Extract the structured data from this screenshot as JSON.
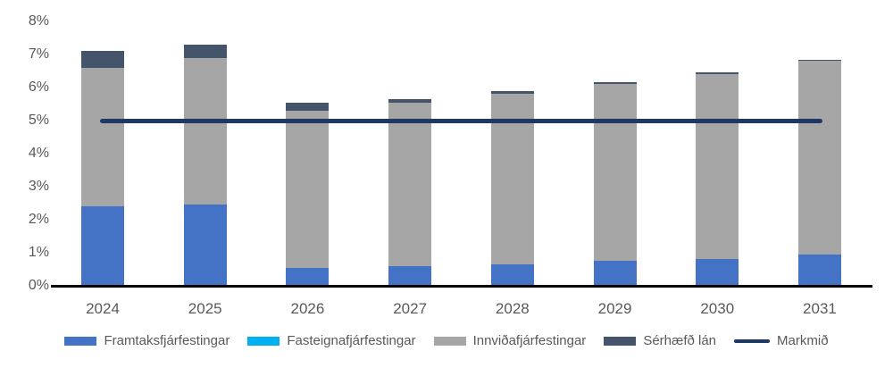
{
  "chart_data": {
    "type": "bar",
    "stacked": true,
    "title": "",
    "xlabel": "",
    "ylabel": "",
    "ylim": [
      0,
      8
    ],
    "y_tick_labels": [
      "0%",
      "1%",
      "2%",
      "3%",
      "4%",
      "5%",
      "6%",
      "7%",
      "8%"
    ],
    "grid": false,
    "legend_position": "bottom",
    "categories": [
      "2024",
      "2025",
      "2026",
      "2027",
      "2028",
      "2029",
      "2030",
      "2031"
    ],
    "series": [
      {
        "name": "Framtaksfjárfestingar",
        "color": "#4472C4",
        "values": [
          2.4,
          2.45,
          0.55,
          0.6,
          0.65,
          0.75,
          0.8,
          0.95
        ]
      },
      {
        "name": "Fasteignafjárfestingar",
        "color": "#00B0F0",
        "values": [
          0,
          0,
          0,
          0,
          0,
          0,
          0,
          0
        ]
      },
      {
        "name": "Innviðafjárfestingar",
        "color": "#A6A6A6",
        "values": [
          4.2,
          4.45,
          4.75,
          4.95,
          5.15,
          5.35,
          5.6,
          5.85
        ]
      },
      {
        "name": "Sérhæfð lán",
        "color": "#44546A",
        "values": [
          0.5,
          0.4,
          0.25,
          0.1,
          0.1,
          0.05,
          0.05,
          0.05
        ]
      }
    ],
    "target_line": {
      "name": "Markmið",
      "color": "#1F3864",
      "value": 5
    }
  },
  "colors": {
    "axis_line": "#000000",
    "tick_text": "#595959"
  }
}
